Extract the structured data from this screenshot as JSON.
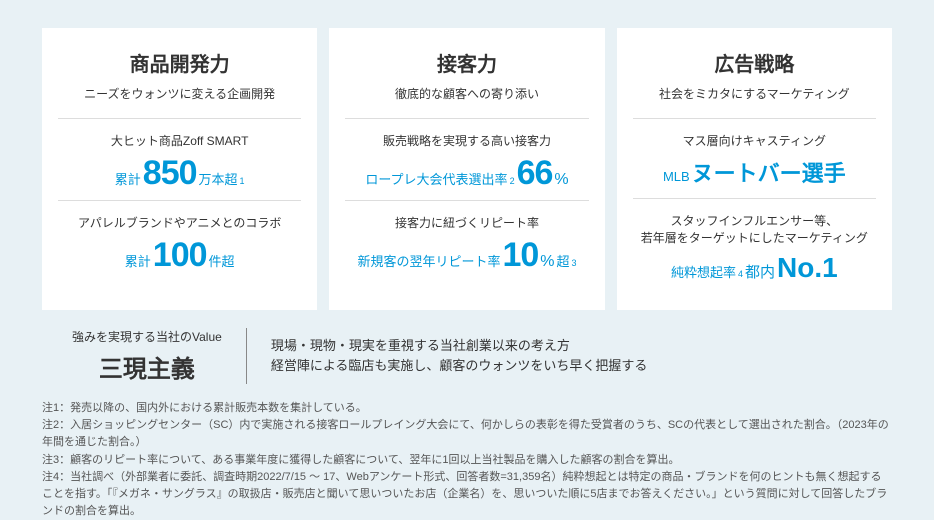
{
  "cards": [
    {
      "title": "商品開発力",
      "subtitle": "ニーズをウォンツに変える企画開発",
      "s1": {
        "label": "大ヒット商品Zoff SMART",
        "pre": "累計",
        "big": "850",
        "suf": "万本超",
        "sup": "1"
      },
      "s2": {
        "label": "アパレルブランドやアニメとのコラボ",
        "pre": "累計",
        "big": "100",
        "suf": "件超"
      }
    },
    {
      "title": "接客力",
      "subtitle": "徹底的な顧客への寄り添い",
      "s1": {
        "label": "販売戦略を実現する高い接客力",
        "pre": "ロープレ大会代表選出率",
        "sup": "2",
        "big": "66",
        "unit": "%"
      },
      "s2": {
        "label": "接客力に紐づくリピート率",
        "pre": "新規客の翌年リピート率",
        "big": "10",
        "unit": "%",
        "suf": "超",
        "sup2": "3"
      }
    },
    {
      "title": "広告戦略",
      "subtitle": "社会をミカタにするマーケティング",
      "s1": {
        "label": "マス層向けキャスティング",
        "pre": "MLB",
        "mid": "ヌートバー選手"
      },
      "s2": {
        "label": "スタッフインフルエンサー等、\n若年層をターゲットにしたマーケティング",
        "pre": "純粋想起率",
        "sup": "4",
        "suf2": "都内",
        "no1": "No.1"
      }
    }
  ],
  "value": {
    "label": "強みを実現する当社のValue",
    "title": "三現主義",
    "line1": "現場・現物・現実を重視する当社創業以来の考え方",
    "line2": "経営陣による臨店も実施し、顧客のウォンツをいち早く把握する"
  },
  "notes": {
    "n1": "注1：発売以降の、国内外における累計販売本数を集計している。",
    "n2": "注2：入居ショッピングセンター（SC）内で実施される接客ロールプレイング大会にて、何かしらの表彰を得た受賞者のうち、SCの代表として選出された割合。（2023年の年間を通じた割合。）",
    "n3": "注3：顧客のリピート率について、ある事業年度に獲得した顧客について、翌年に1回以上当社製品を購入した顧客の割合を算出。",
    "n4": "注4：当社調べ（外部業者に委託、調査時期2022/7/15 〜 17、Webアンケート形式、回答者数=31,359名）純粋想起とは特定の商品・ブランドを何のヒントも無く想起することを指す。「『メガネ・サングラス』の取扱店・販売店と聞いて思いついたお店（企業名）を、思いついた順に5店までお答えください。」という質問に対して回答したブランドの割合を算出。"
  }
}
